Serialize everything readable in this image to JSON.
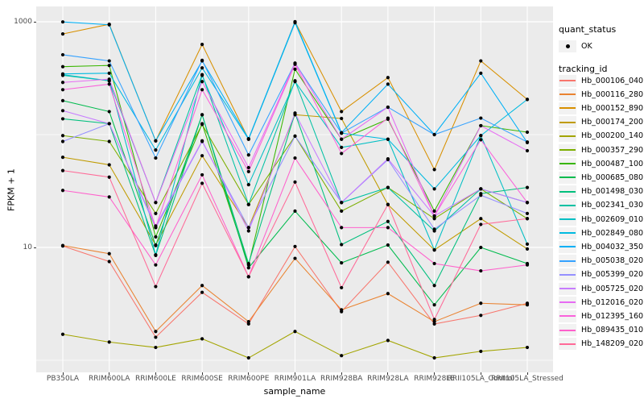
{
  "chart_data": {
    "type": "line",
    "title": "",
    "xlabel": "sample_name",
    "ylabel": "FPKM + 1",
    "y_scale": "log10",
    "ylim": [
      0.8,
      1320
    ],
    "y_tick_labels": [
      "1000",
      "10"
    ],
    "y_tick_values": [
      1000,
      10
    ],
    "y_major_gridlines": [
      1000,
      10
    ],
    "y_minor_gridlines": [
      100,
      1
    ],
    "grid_on": true,
    "grid_color": "#FFFFFF",
    "panel_bg": "#EBEBEB",
    "point_color": "#000000",
    "legend_position": "right",
    "x_categories": [
      "PB350LA",
      "RRIM600LA",
      "RRIM600LE",
      "RRIM600SE",
      "RRIM600PE",
      "RRIM901LA",
      "RRIM928BA",
      "RRIM928LA",
      "RRIM928LE",
      "RRII105LA_Control",
      "RRII105LA_Stressed"
    ],
    "series": [
      {
        "name": "Hb_000106_040",
        "color": "#F8766D",
        "values": [
          10.3,
          7.5,
          1.6,
          4.0,
          2.1,
          10.2,
          2.7,
          7.4,
          2.1,
          2.5,
          3.2
        ]
      },
      {
        "name": "Hb_000116_280",
        "color": "#EA8331",
        "values": [
          10.4,
          8.8,
          1.8,
          4.6,
          2.2,
          8.0,
          2.8,
          3.9,
          2.2,
          3.2,
          3.1
        ]
      },
      {
        "name": "Hb_000152_890",
        "color": "#D89000",
        "values": [
          780,
          950,
          88,
          630,
          91,
          1000,
          160,
          320,
          49,
          450,
          205
        ]
      },
      {
        "name": "Hb_000174_200",
        "color": "#C09B00",
        "values": [
          63,
          54,
          10.5,
          65,
          15,
          150,
          139,
          24,
          9.5,
          18,
          9.7
        ]
      },
      {
        "name": "Hb_000200_140",
        "color": "#A3A500",
        "values": [
          1.7,
          1.45,
          1.3,
          1.55,
          1.05,
          1.8,
          1.1,
          1.5,
          1.05,
          1.2,
          1.3
        ]
      },
      {
        "name": "Hb_000357_290",
        "color": "#7CAE00",
        "values": [
          98,
          87,
          20,
          123,
          24,
          97,
          21,
          34,
          18,
          33,
          18
        ]
      },
      {
        "name": "Hb_000487_100",
        "color": "#39B600",
        "values": [
          400,
          410,
          12.4,
          125,
          7.0,
          380,
          91,
          137,
          21,
          120,
          105
        ]
      },
      {
        "name": "Hb_000685_080",
        "color": "#00BB4E",
        "values": [
          200,
          160,
          10.4,
          150,
          6.6,
          21,
          7.3,
          10.5,
          3.1,
          10,
          7.2
        ]
      },
      {
        "name": "Hb_001498_030",
        "color": "#00BF7D",
        "values": [
          138,
          125,
          8.5,
          150,
          7.2,
          155,
          10.6,
          17,
          4.6,
          30,
          34
        ]
      },
      {
        "name": "Hb_002341_030",
        "color": "#00C1A3",
        "values": [
          335,
          300,
          25,
          340,
          24,
          300,
          25,
          34,
          14,
          33,
          25
        ]
      },
      {
        "name": "Hb_002609_010",
        "color": "#00BFC4",
        "values": [
          340,
          300,
          8.6,
          335,
          36,
          295,
          77,
          91,
          9.5,
          98,
          10.7
        ]
      },
      {
        "name": "Hb_002849_080",
        "color": "#00BAE0",
        "values": [
          345,
          350,
          73,
          390,
          91,
          980,
          103,
          91,
          33,
          98,
          205
        ]
      },
      {
        "name": "Hb_004032_350",
        "color": "#00B0F6",
        "values": [
          997,
          940,
          88,
          450,
          92,
          1000,
          104,
          280,
          100,
          350,
          85
        ]
      },
      {
        "name": "Hb_005038_020",
        "color": "#35A2FF",
        "values": [
          510,
          450,
          62,
          455,
          66,
          430,
          103,
          175,
          100,
          140,
          86
        ]
      },
      {
        "name": "Hb_005399_020",
        "color": "#9590FF",
        "values": [
          87,
          125,
          15,
          87,
          15,
          97,
          25,
          60,
          14.5,
          29,
          20
        ]
      },
      {
        "name": "Hb_005725_020",
        "color": "#C77CFF",
        "values": [
          163,
          125,
          15.5,
          88,
          14,
          155,
          25,
          61,
          19,
          33,
          25
        ]
      },
      {
        "name": "Hb_012016_020",
        "color": "#E76BF3",
        "values": [
          290,
          310,
          25,
          295,
          51,
          430,
          91,
          175,
          19,
          120,
          72
        ]
      },
      {
        "name": "Hb_012395_160",
        "color": "#FA62DB",
        "values": [
          250,
          280,
          15,
          250,
          47,
          420,
          68,
          140,
          19,
          90,
          25
        ]
      },
      {
        "name": "Hb_089435_010",
        "color": "#FF61CC",
        "values": [
          32,
          28,
          7.0,
          44,
          5.5,
          62,
          15,
          15,
          7.2,
          6.2,
          7.0
        ]
      },
      {
        "name": "Hb_148209_020",
        "color": "#FF6A98",
        "values": [
          48,
          42,
          4.5,
          37,
          5.5,
          38,
          4.4,
          24,
          2.3,
          16,
          18
        ]
      }
    ]
  },
  "legend": {
    "quant_status_title": "quant_status",
    "quant_status_items": [
      {
        "label": "OK",
        "symbol": "point",
        "color": "#000000"
      }
    ],
    "tracking_title": "tracking_id",
    "key_bg": "#F2F2F2"
  }
}
